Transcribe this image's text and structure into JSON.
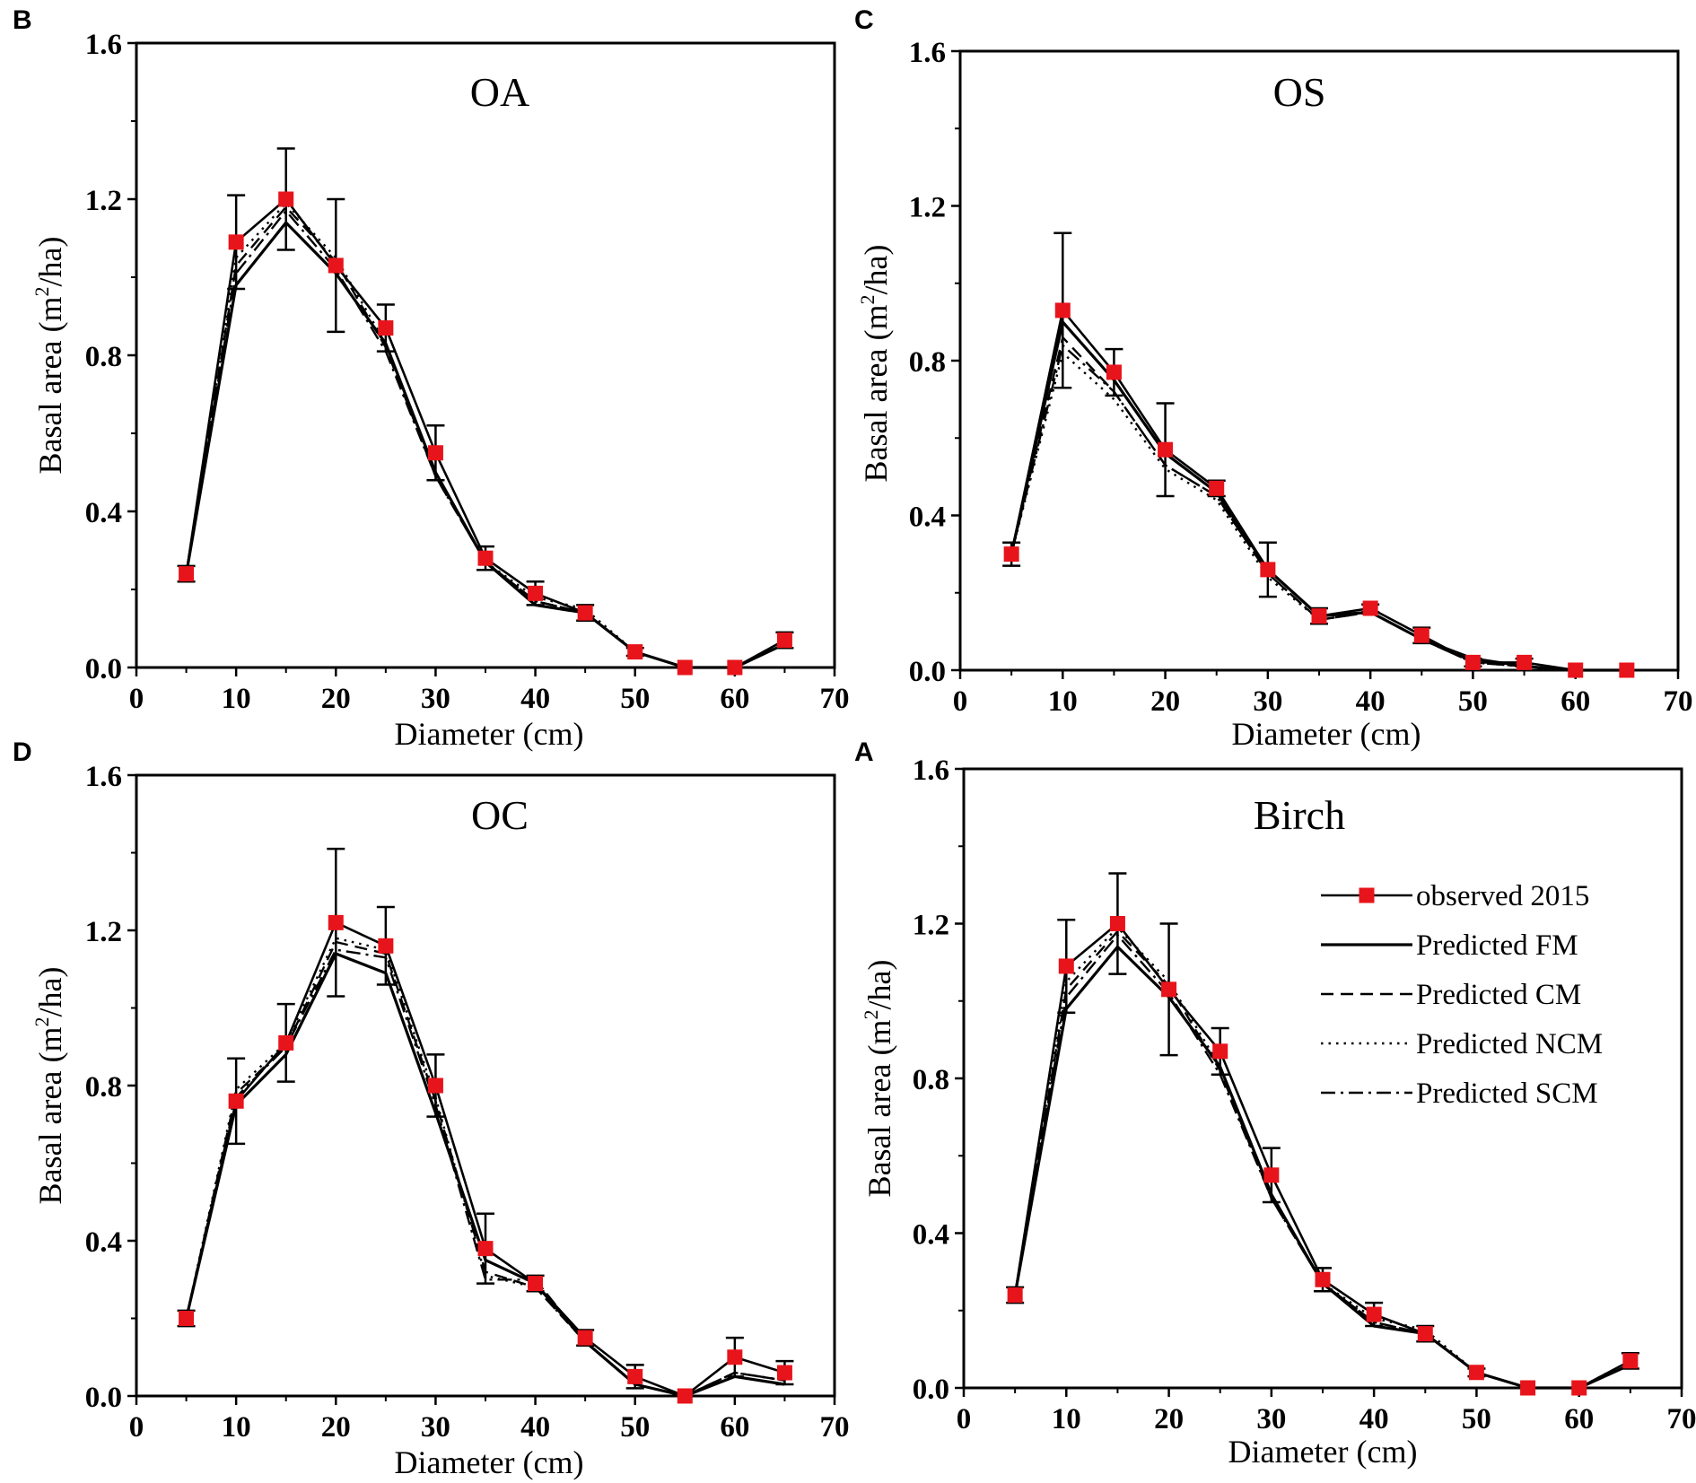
{
  "figure": {
    "common_legend": {
      "observed": "observed  2015",
      "fm": "Predicted FM",
      "cm": "Predicted CM",
      "ncm": "Predicted NCM",
      "scm": "Predicted SCM"
    },
    "colors": {
      "observed": "#e8141b",
      "line": "#000000"
    }
  },
  "chart_data": [
    {
      "type": "line",
      "panel_letter": "B",
      "title": "OA",
      "xlabel": "Diameter (cm)",
      "ylabel_main": "Basal area (m",
      "ylabel_sup": "2",
      "ylabel_tail": "/ha)",
      "xlim": [
        0,
        70
      ],
      "ylim": [
        0,
        1.6
      ],
      "x_ticks": [
        "0",
        "10",
        "20",
        "30",
        "40",
        "50",
        "60",
        "70"
      ],
      "y_ticks": [
        "0.0",
        "0.4",
        "0.8",
        "1.2",
        "1.6"
      ],
      "x": [
        5,
        10,
        15,
        20,
        25,
        30,
        35,
        40,
        45,
        50,
        55,
        60,
        65
      ],
      "series": [
        {
          "name": "observed 2015",
          "values": [
            0.24,
            1.09,
            1.2,
            1.03,
            0.87,
            0.55,
            0.28,
            0.19,
            0.14,
            0.04,
            0.0,
            0.0,
            0.07
          ],
          "error": [
            0.02,
            0.12,
            0.13,
            0.17,
            0.06,
            0.07,
            0.03,
            0.03,
            0.02,
            0.01,
            0.0,
            0.0,
            0.02
          ]
        },
        {
          "name": "Predicted FM",
          "values": [
            0.24,
            0.98,
            1.14,
            1.01,
            0.83,
            0.5,
            0.27,
            0.16,
            0.14,
            0.04,
            0.0,
            0.0,
            0.06
          ]
        },
        {
          "name": "Predicted CM",
          "values": [
            0.24,
            1.03,
            1.18,
            1.04,
            0.82,
            0.49,
            0.27,
            0.17,
            0.14,
            0.04,
            0.0,
            0.0,
            0.06
          ]
        },
        {
          "name": "Predicted NCM",
          "values": [
            0.24,
            1.05,
            1.19,
            1.05,
            0.83,
            0.5,
            0.27,
            0.18,
            0.15,
            0.04,
            0.0,
            0.0,
            0.07
          ]
        },
        {
          "name": "Predicted SCM",
          "values": [
            0.24,
            1.01,
            1.17,
            1.02,
            0.81,
            0.49,
            0.27,
            0.17,
            0.14,
            0.04,
            0.0,
            0.0,
            0.06
          ]
        }
      ]
    },
    {
      "type": "line",
      "panel_letter": "C",
      "title": "OS",
      "xlabel": "Diameter (cm)",
      "ylabel_main": "Basal area (m",
      "ylabel_sup": "2",
      "ylabel_tail": "/ha)",
      "xlim": [
        0,
        70
      ],
      "ylim": [
        0,
        1.6
      ],
      "x_ticks": [
        "0",
        "10",
        "20",
        "30",
        "40",
        "50",
        "60",
        "70"
      ],
      "y_ticks": [
        "0.0",
        "0.4",
        "0.8",
        "1.2",
        "1.6"
      ],
      "x": [
        5,
        10,
        15,
        20,
        25,
        30,
        35,
        40,
        45,
        50,
        55,
        60,
        65
      ],
      "series": [
        {
          "name": "observed 2015",
          "values": [
            0.3,
            0.93,
            0.77,
            0.57,
            0.47,
            0.26,
            0.14,
            0.16,
            0.09,
            0.02,
            0.02,
            0.0,
            0.0
          ],
          "error": [
            0.03,
            0.2,
            0.06,
            0.12,
            0.02,
            0.07,
            0.02,
            0.01,
            0.02,
            0.01,
            0.01,
            0.0,
            0.0
          ]
        },
        {
          "name": "Predicted FM",
          "values": [
            0.3,
            0.9,
            0.75,
            0.56,
            0.46,
            0.26,
            0.14,
            0.15,
            0.08,
            0.03,
            0.01,
            0.0,
            0.0
          ]
        },
        {
          "name": "Predicted CM",
          "values": [
            0.3,
            0.86,
            0.72,
            0.53,
            0.45,
            0.25,
            0.13,
            0.15,
            0.08,
            0.02,
            0.01,
            0.0,
            0.0
          ]
        },
        {
          "name": "Predicted NCM",
          "values": [
            0.3,
            0.82,
            0.7,
            0.52,
            0.44,
            0.24,
            0.13,
            0.15,
            0.08,
            0.02,
            0.01,
            0.0,
            0.0
          ]
        },
        {
          "name": "Predicted SCM",
          "values": [
            0.3,
            0.84,
            0.72,
            0.53,
            0.45,
            0.25,
            0.13,
            0.15,
            0.08,
            0.02,
            0.01,
            0.0,
            0.0
          ]
        }
      ]
    },
    {
      "type": "line",
      "panel_letter": "D",
      "title": "OC",
      "xlabel": "Diameter (cm)",
      "ylabel_main": "Basal area (m",
      "ylabel_sup": "2",
      "ylabel_tail": "/ha)",
      "xlim": [
        0,
        70
      ],
      "ylim": [
        0,
        1.6
      ],
      "x_ticks": [
        "0",
        "10",
        "20",
        "30",
        "40",
        "50",
        "60",
        "70"
      ],
      "y_ticks": [
        "0.0",
        "0.4",
        "0.8",
        "1.2",
        "1.6"
      ],
      "x": [
        5,
        10,
        15,
        20,
        25,
        30,
        35,
        40,
        45,
        50,
        55,
        60,
        65
      ],
      "series": [
        {
          "name": "observed 2015",
          "values": [
            0.2,
            0.76,
            0.91,
            1.22,
            1.16,
            0.8,
            0.38,
            0.29,
            0.15,
            0.05,
            0.0,
            0.1,
            0.06
          ],
          "error": [
            0.02,
            0.11,
            0.1,
            0.19,
            0.1,
            0.08,
            0.09,
            0.02,
            0.02,
            0.03,
            0.0,
            0.05,
            0.03
          ]
        },
        {
          "name": "Predicted FM",
          "values": [
            0.2,
            0.75,
            0.88,
            1.14,
            1.09,
            0.73,
            0.35,
            0.29,
            0.14,
            0.03,
            0.0,
            0.05,
            0.03
          ]
        },
        {
          "name": "Predicted CM",
          "values": [
            0.2,
            0.78,
            0.9,
            1.17,
            1.14,
            0.76,
            0.32,
            0.28,
            0.14,
            0.03,
            0.0,
            0.06,
            0.04
          ]
        },
        {
          "name": "Predicted NCM",
          "values": [
            0.2,
            0.79,
            0.91,
            1.18,
            1.15,
            0.77,
            0.31,
            0.28,
            0.14,
            0.03,
            0.0,
            0.06,
            0.04
          ]
        },
        {
          "name": "Predicted SCM",
          "values": [
            0.2,
            0.77,
            0.9,
            1.15,
            1.13,
            0.75,
            0.3,
            0.3,
            0.14,
            0.03,
            0.0,
            0.06,
            0.04
          ]
        }
      ]
    },
    {
      "type": "line",
      "panel_letter": "A",
      "title": "Birch",
      "xlabel": "Diameter (cm)",
      "ylabel_main": "Basal area (m",
      "ylabel_sup": "2",
      "ylabel_tail": "/ha)",
      "xlim": [
        0,
        70
      ],
      "ylim": [
        0,
        1.6
      ],
      "x_ticks": [
        "0",
        "10",
        "20",
        "30",
        "40",
        "50",
        "60",
        "70"
      ],
      "y_ticks": [
        "0.0",
        "0.4",
        "0.8",
        "1.2",
        "1.6"
      ],
      "legend": "right",
      "x": [
        5,
        10,
        15,
        20,
        25,
        30,
        35,
        40,
        45,
        50,
        55,
        60,
        65
      ],
      "series": [
        {
          "name": "observed 2015",
          "values": [
            0.24,
            1.09,
            1.2,
            1.03,
            0.87,
            0.55,
            0.28,
            0.19,
            0.14,
            0.04,
            0.0,
            0.0,
            0.07
          ],
          "error": [
            0.02,
            0.12,
            0.13,
            0.17,
            0.06,
            0.07,
            0.03,
            0.03,
            0.02,
            0.01,
            0.0,
            0.0,
            0.02
          ]
        },
        {
          "name": "Predicted FM",
          "values": [
            0.24,
            0.98,
            1.14,
            1.01,
            0.83,
            0.5,
            0.27,
            0.16,
            0.14,
            0.04,
            0.0,
            0.0,
            0.06
          ]
        },
        {
          "name": "Predicted CM",
          "values": [
            0.24,
            1.03,
            1.18,
            1.04,
            0.82,
            0.49,
            0.27,
            0.17,
            0.14,
            0.04,
            0.0,
            0.0,
            0.06
          ]
        },
        {
          "name": "Predicted NCM",
          "values": [
            0.24,
            1.05,
            1.19,
            1.05,
            0.83,
            0.5,
            0.27,
            0.18,
            0.15,
            0.04,
            0.0,
            0.0,
            0.07
          ]
        },
        {
          "name": "Predicted SCM",
          "values": [
            0.24,
            1.01,
            1.17,
            1.02,
            0.81,
            0.49,
            0.27,
            0.17,
            0.14,
            0.04,
            0.0,
            0.0,
            0.06
          ]
        }
      ]
    }
  ]
}
